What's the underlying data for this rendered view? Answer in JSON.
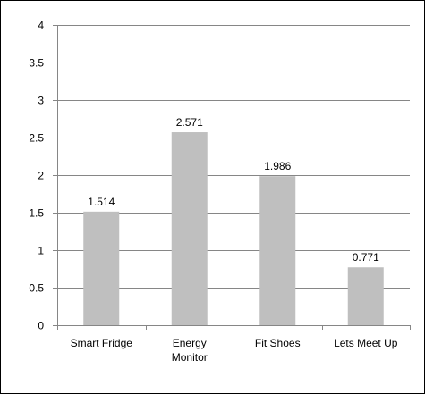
{
  "chart_data": {
    "type": "bar",
    "categories": [
      "Smart Fridge",
      "Energy Monitor",
      "Fit Shoes",
      "Lets Meet Up"
    ],
    "category_lines": [
      [
        "Smart Fridge"
      ],
      [
        "Energy",
        "Monitor"
      ],
      [
        "Fit Shoes"
      ],
      [
        "Lets Meet Up"
      ]
    ],
    "values": [
      1.514,
      2.571,
      1.986,
      0.771
    ],
    "data_labels": [
      "1.514",
      "2.571",
      "1.986",
      "0.771"
    ],
    "title": "",
    "xlabel": "",
    "ylabel": "",
    "ylim": [
      0,
      4
    ],
    "yticks": [
      0,
      0.5,
      1,
      1.5,
      2,
      2.5,
      3,
      3.5,
      4
    ],
    "ytick_labels": [
      "0",
      "0.5",
      "1",
      "1.5",
      "2",
      "2.5",
      "3",
      "3.5",
      "4"
    ],
    "grid": true,
    "legend": "none",
    "colors": {
      "bar": "#bfbfbf",
      "grid": "#868686",
      "axis": "#868686",
      "text": "#000000"
    }
  }
}
